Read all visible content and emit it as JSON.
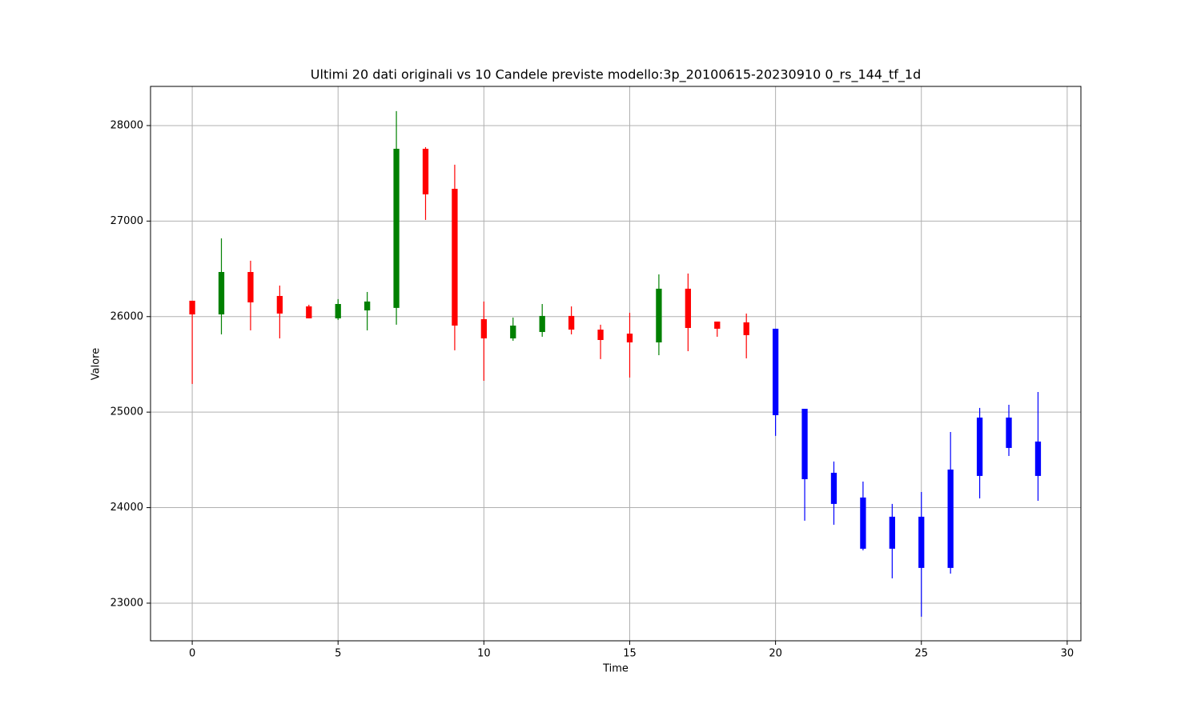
{
  "chart_data": {
    "type": "candlestick",
    "title": "Ultimi 20 dati originali vs 10 Candele previste modello:3p_20100615-20230910 0_rs_144_tf_1d",
    "x_label": "Time",
    "y_label": "Valore",
    "series": [
      {
        "up_color": "green",
        "down_color": "red",
        "x": [
          0,
          1,
          2,
          3,
          4,
          5,
          6,
          7,
          8,
          9,
          10,
          11,
          12,
          13,
          14,
          15,
          16,
          17,
          18,
          19
        ],
        "open": [
          26166,
          26023,
          26467,
          26216,
          26107,
          25982,
          26065,
          26091,
          27757,
          27338,
          25973,
          25772,
          25839,
          26007,
          25864,
          25822,
          25730,
          26292,
          25948,
          25940
        ],
        "high": [
          26166,
          26819,
          26585,
          26325,
          26124,
          26183,
          26258,
          28151,
          27774,
          27590,
          26158,
          25990,
          26132,
          26107,
          25915,
          26040,
          26442,
          26451,
          25948,
          26032
        ],
        "low": [
          25295,
          25814,
          25856,
          25772,
          25982,
          25965,
          25856,
          25915,
          27012,
          25647,
          25328,
          25747,
          25789,
          25814,
          25555,
          25362,
          25596,
          25638,
          25789,
          25563
        ],
        "close": [
          26023,
          26467,
          26149,
          26032,
          25982,
          26132,
          26158,
          27757,
          27280,
          25906,
          25772,
          25906,
          26007,
          25864,
          25755,
          25730,
          26292,
          25881,
          25873,
          25806
        ]
      },
      {
        "color": "blue",
        "x": [
          20,
          21,
          22,
          23,
          24,
          25,
          26,
          27,
          28,
          29
        ],
        "open": [
          25873,
          25035,
          24365,
          24106,
          23905,
          23905,
          23369,
          24332,
          24943,
          24692
        ],
        "high": [
          25873,
          25035,
          24483,
          24273,
          24039,
          24164,
          24792,
          25044,
          25077,
          25211
        ],
        "low": [
          24751,
          23863,
          23821,
          23553,
          23260,
          22858,
          23310,
          24097,
          24541,
          24072
        ],
        "close": [
          24968,
          24298,
          24039,
          23570,
          23570,
          23369,
          24399,
          24943,
          24625,
          24332
        ]
      }
    ],
    "xlim": [
      -1.43,
      30.47
    ],
    "xticks": [
      0,
      5,
      10,
      15,
      20,
      25,
      30
    ],
    "ylim": [
      22606,
      28410
    ],
    "yticks": [
      23000,
      24000,
      25000,
      26000,
      27000,
      28000
    ],
    "grid": true
  }
}
